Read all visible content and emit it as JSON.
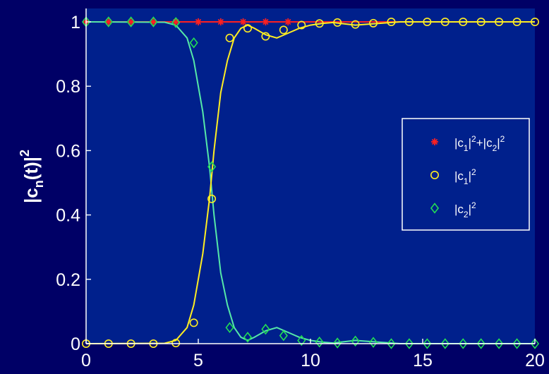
{
  "colors": {
    "figure_bg": "#000066",
    "axes_bg": "#00208C",
    "axis_and_text": "#FFFFFF",
    "sum_series": "#FF2020",
    "c1_series": "#FFEE22",
    "c2_series": "#22DD55",
    "c2_line": "#55E8A8"
  },
  "chart_data": {
    "type": "line",
    "title": "",
    "xlabel": "",
    "ylabel": {
      "base": "|c",
      "sub": "n",
      "mid": "(t)|",
      "sup": "2"
    },
    "xlim": [
      0,
      20
    ],
    "ylim": [
      0,
      1
    ],
    "xticks": [
      0,
      5,
      10,
      15,
      20
    ],
    "xtick_labels": [
      "0",
      "5",
      "10",
      "15",
      "20"
    ],
    "yticks": [
      0,
      0.2,
      0.4,
      0.6,
      0.8,
      1
    ],
    "ytick_labels": [
      "0",
      "0.2",
      "0.4",
      "0.6",
      "0.8",
      "1"
    ],
    "grid": false,
    "legend_position": "right-middle",
    "series": [
      {
        "key": "sum",
        "marker": "asterisk",
        "legend": {
          "parts": [
            [
              "|c",
              ""
            ],
            [
              "1",
              "sub"
            ],
            [
              "|",
              ""
            ],
            [
              "2",
              "sup"
            ],
            [
              "+|c",
              ""
            ],
            [
              "2",
              "sub"
            ],
            [
              "|",
              ""
            ],
            [
              "2",
              "sup"
            ]
          ]
        },
        "line": {
          "x": [
            0,
            20
          ],
          "y": [
            1,
            1
          ]
        },
        "markers": {
          "x": [
            0,
            1,
            2,
            3,
            4,
            5,
            6,
            7,
            8,
            9
          ],
          "y": [
            1,
            1,
            1,
            1,
            1,
            1,
            1,
            1,
            1,
            1
          ]
        }
      },
      {
        "key": "c1",
        "marker": "circle",
        "legend": {
          "parts": [
            [
              "|c",
              ""
            ],
            [
              "1",
              "sub"
            ],
            [
              "|",
              ""
            ],
            [
              "2",
              "sup"
            ]
          ]
        },
        "line": {
          "x": [
            0,
            3.5,
            4.0,
            4.5,
            4.8,
            5.0,
            5.2,
            5.5,
            5.7,
            6.0,
            6.3,
            6.6,
            6.9,
            7.2,
            7.5,
            8.0,
            8.5,
            9.0,
            9.5,
            10.0,
            10.5,
            11,
            12,
            13,
            14,
            15,
            16,
            17,
            18,
            19,
            20
          ],
          "y": [
            0,
            0.001,
            0.01,
            0.05,
            0.12,
            0.2,
            0.28,
            0.45,
            0.6,
            0.78,
            0.88,
            0.95,
            0.98,
            0.99,
            0.98,
            0.96,
            0.95,
            0.965,
            0.98,
            0.99,
            0.995,
            0.998,
            0.99,
            0.995,
            1,
            1,
            1,
            1,
            1,
            1,
            1
          ]
        },
        "markers": {
          "x": [
            0,
            1,
            2,
            3,
            4,
            4.8,
            5.6,
            6.4,
            7.2,
            8.0,
            8.8,
            9.6,
            10.4,
            11.2,
            12.0,
            12.8,
            13.6,
            14.4,
            15.2,
            16.0,
            16.8,
            17.6,
            18.4,
            19.2,
            20
          ],
          "y": [
            0,
            0,
            0,
            0,
            0.002,
            0.065,
            0.45,
            0.95,
            0.98,
            0.955,
            0.975,
            0.99,
            0.995,
            0.998,
            0.992,
            0.996,
            1,
            1,
            1,
            1,
            1,
            1,
            1,
            1,
            1
          ]
        }
      },
      {
        "key": "c2",
        "marker": "diamond",
        "legend": {
          "parts": [
            [
              "|c",
              ""
            ],
            [
              "2",
              "sub"
            ],
            [
              "|",
              ""
            ],
            [
              "2",
              "sup"
            ]
          ]
        },
        "line": {
          "x": [
            0,
            3.5,
            4.0,
            4.5,
            4.8,
            5.0,
            5.2,
            5.5,
            5.7,
            6.0,
            6.3,
            6.6,
            6.9,
            7.2,
            7.5,
            8.0,
            8.5,
            9.0,
            9.5,
            10.0,
            10.5,
            11,
            12,
            13,
            14,
            15,
            16,
            17,
            18,
            19,
            20
          ],
          "y": [
            1,
            0.999,
            0.99,
            0.95,
            0.88,
            0.8,
            0.72,
            0.55,
            0.4,
            0.22,
            0.12,
            0.05,
            0.02,
            0.01,
            0.02,
            0.04,
            0.05,
            0.035,
            0.02,
            0.01,
            0.005,
            0.002,
            0.01,
            0.005,
            0,
            0,
            0,
            0,
            0,
            0,
            0
          ]
        },
        "markers": {
          "x": [
            0,
            1,
            2,
            3,
            4,
            4.8,
            5.6,
            6.4,
            7.2,
            8.0,
            8.8,
            9.6,
            10.4,
            11.2,
            12.0,
            12.8,
            13.6,
            14.4,
            15.2,
            16.0,
            16.8,
            17.6,
            18.4,
            19.2,
            20
          ],
          "y": [
            1,
            1,
            1,
            1,
            0.998,
            0.935,
            0.55,
            0.05,
            0.02,
            0.045,
            0.025,
            0.01,
            0.005,
            0.002,
            0.008,
            0.004,
            0,
            0,
            0,
            0,
            0,
            0,
            0,
            0,
            0
          ]
        }
      }
    ]
  }
}
